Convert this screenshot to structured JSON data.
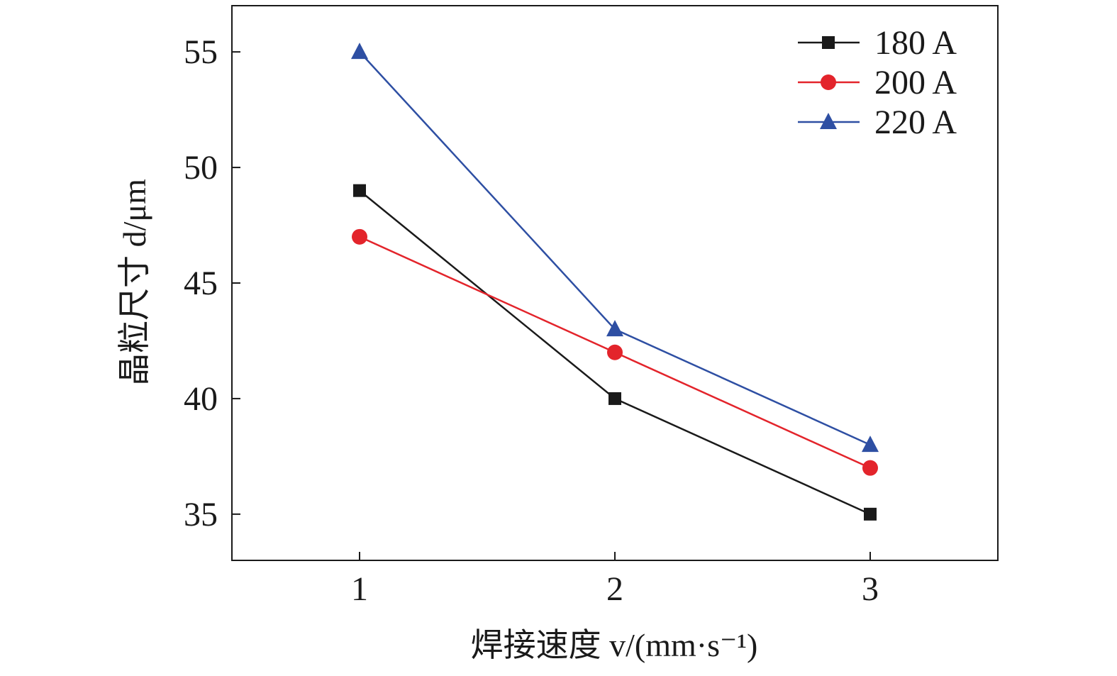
{
  "chart_data": {
    "type": "line",
    "title": "",
    "xlabel": "焊接速度 v/(mm·s⁻¹)",
    "ylabel": "晶粒尺寸 d/μm",
    "x": [
      1,
      2,
      3
    ],
    "x_tick_labels": [
      "1",
      "2",
      "3"
    ],
    "xlim": [
      0.5,
      3.5
    ],
    "ylim": [
      33,
      57
    ],
    "y_ticks": [
      35,
      40,
      45,
      50,
      55
    ],
    "y_tick_labels": [
      "35",
      "40",
      "45",
      "50",
      "55"
    ],
    "grid": false,
    "legend_position": "top-right",
    "series": [
      {
        "name": "180 A",
        "values": [
          49,
          40,
          35
        ],
        "color": "#1a1a1a",
        "marker": "square"
      },
      {
        "name": "200 A",
        "values": [
          47,
          42,
          37
        ],
        "color": "#e3242b",
        "marker": "circle"
      },
      {
        "name": "220 A",
        "values": [
          55,
          43,
          38
        ],
        "color": "#2e4fa3",
        "marker": "triangle"
      }
    ]
  }
}
